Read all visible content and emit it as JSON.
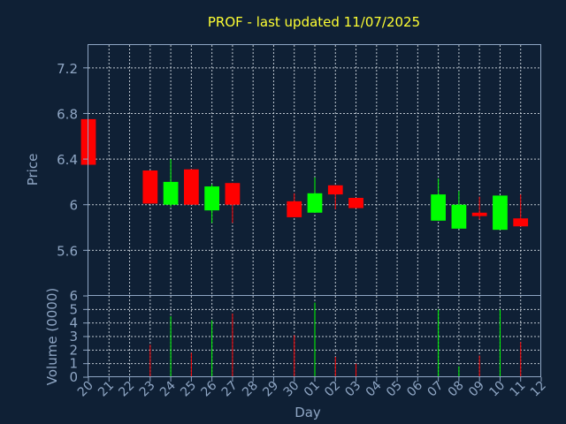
{
  "chart_data": {
    "type": "candlestick",
    "title": "PROF - last updated 11/07/2025",
    "xlabel": "Day",
    "price_panel": {
      "ylabel": "Price",
      "ylim": [
        5.2,
        7.4
      ],
      "yticks": [
        "5.6",
        "6",
        "6.4",
        "6.8",
        "7.2"
      ]
    },
    "volume_panel": {
      "ylabel": "Volume (0000)",
      "ylim": [
        0,
        6
      ],
      "yticks": [
        "0",
        "1",
        "2",
        "3",
        "4",
        "5",
        "6"
      ]
    },
    "x_ticks": [
      "20",
      "21",
      "22",
      "23",
      "24",
      "25",
      "26",
      "27",
      "28",
      "29",
      "30",
      "01",
      "02",
      "03",
      "04",
      "05",
      "06",
      "07",
      "08",
      "09",
      "10",
      "11",
      "12"
    ],
    "up_color": "#00ff00",
    "down_color": "#ff0000",
    "candles": [
      {
        "day": "20",
        "open": 6.75,
        "close": 6.35,
        "high": 6.75,
        "low": 6.35,
        "volume": 0
      },
      {
        "day": "23",
        "open": 6.3,
        "close": 6.01,
        "high": 6.3,
        "low": 6.01,
        "volume": 2.4
      },
      {
        "day": "24",
        "open": 6.0,
        "close": 6.2,
        "high": 6.4,
        "low": 5.98,
        "volume": 4.5
      },
      {
        "day": "25",
        "open": 6.31,
        "close": 6.0,
        "high": 6.31,
        "low": 6.0,
        "volume": 1.8
      },
      {
        "day": "26",
        "open": 5.95,
        "close": 6.16,
        "high": 6.18,
        "low": 5.84,
        "volume": 4.2
      },
      {
        "day": "27",
        "open": 6.19,
        "close": 6.0,
        "high": 6.19,
        "low": 5.84,
        "volume": 4.7
      },
      {
        "day": "30",
        "open": 6.03,
        "close": 5.89,
        "high": 6.1,
        "low": 5.89,
        "volume": 3.1
      },
      {
        "day": "01",
        "open": 5.93,
        "close": 6.1,
        "high": 6.24,
        "low": 5.93,
        "volume": 5.5
      },
      {
        "day": "02",
        "open": 6.17,
        "close": 6.09,
        "high": 6.17,
        "low": 5.96,
        "volume": 1.5
      },
      {
        "day": "03",
        "open": 6.06,
        "close": 5.97,
        "high": 6.06,
        "low": 5.97,
        "volume": 1.0
      },
      {
        "day": "07",
        "open": 5.86,
        "close": 6.09,
        "high": 6.23,
        "low": 5.86,
        "volume": 5.0
      },
      {
        "day": "08",
        "open": 5.79,
        "close": 6.0,
        "high": 6.12,
        "low": 5.79,
        "volume": 0.8
      },
      {
        "day": "09",
        "open": 5.93,
        "close": 5.9,
        "high": 6.07,
        "low": 5.87,
        "volume": 1.6
      },
      {
        "day": "10",
        "open": 5.78,
        "close": 6.08,
        "high": 6.08,
        "low": 5.78,
        "volume": 5.0
      },
      {
        "day": "11",
        "open": 5.88,
        "close": 5.81,
        "high": 6.09,
        "low": 5.81,
        "volume": 2.6
      }
    ]
  }
}
